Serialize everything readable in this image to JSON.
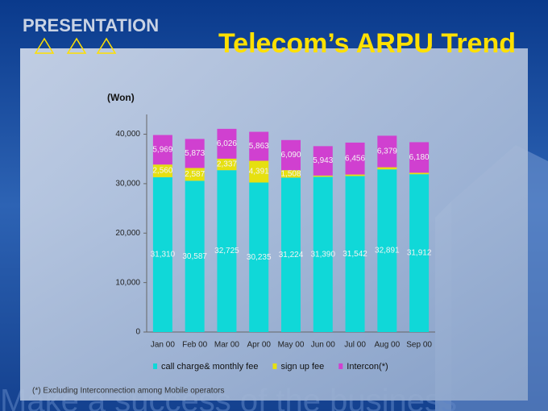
{
  "header": {
    "badge": "PRESENTATION",
    "title": "Telecom’s ARPU Trend"
  },
  "chart_data": {
    "type": "stacked-bar",
    "y_label": "(Won)",
    "categories": [
      "Jan 00",
      "Feb 00",
      "Mar 00",
      "Apr 00",
      "May 00",
      "Jun 00",
      "Jul 00",
      "Aug 00",
      "Sep 00"
    ],
    "series": [
      {
        "name": "call charge& monthly fee",
        "color": "#10d8d8",
        "values": [
          31310,
          30587,
          32725,
          30235,
          31224,
          31390,
          31542,
          32891,
          31912
        ],
        "value_labels": [
          "31,310",
          "30,587",
          "32,725",
          "30,235",
          "31,224",
          "31,390",
          "31,542",
          "32,891",
          "31,912"
        ]
      },
      {
        "name": "sign up fee",
        "color": "#e6e010",
        "values": [
          2560,
          2587,
          2337,
          4391,
          1508,
          254,
          308,
          428,
          294
        ],
        "value_labels": [
          "2,560",
          "2,587",
          "2,337",
          "4,391",
          "1,508",
          "254",
          "308",
          "428",
          "294"
        ]
      },
      {
        "name": "Intercon(*)",
        "color": "#d040d0",
        "values": [
          5969,
          5873,
          6026,
          5863,
          6090,
          5943,
          6456,
          6379,
          6180
        ],
        "value_labels": [
          "5,969",
          "5,873",
          "6,026",
          "5,863",
          "6,090",
          "5,943",
          "6,456",
          "6,379",
          "6,180"
        ]
      }
    ],
    "ylim": [
      0,
      44000
    ],
    "yticks": [
      0,
      {
        "value": 10000,
        "label": "10,000"
      },
      {
        "value": 20000,
        "label": "20,000"
      },
      {
        "value": 30000,
        "label": "30,000"
      },
      {
        "value": 40000,
        "label": "40,000"
      }
    ],
    "legend": "bottom"
  },
  "footnote": "(*) Excluding Interconnection among Mobile operators",
  "background_text": "Make a success of the business"
}
